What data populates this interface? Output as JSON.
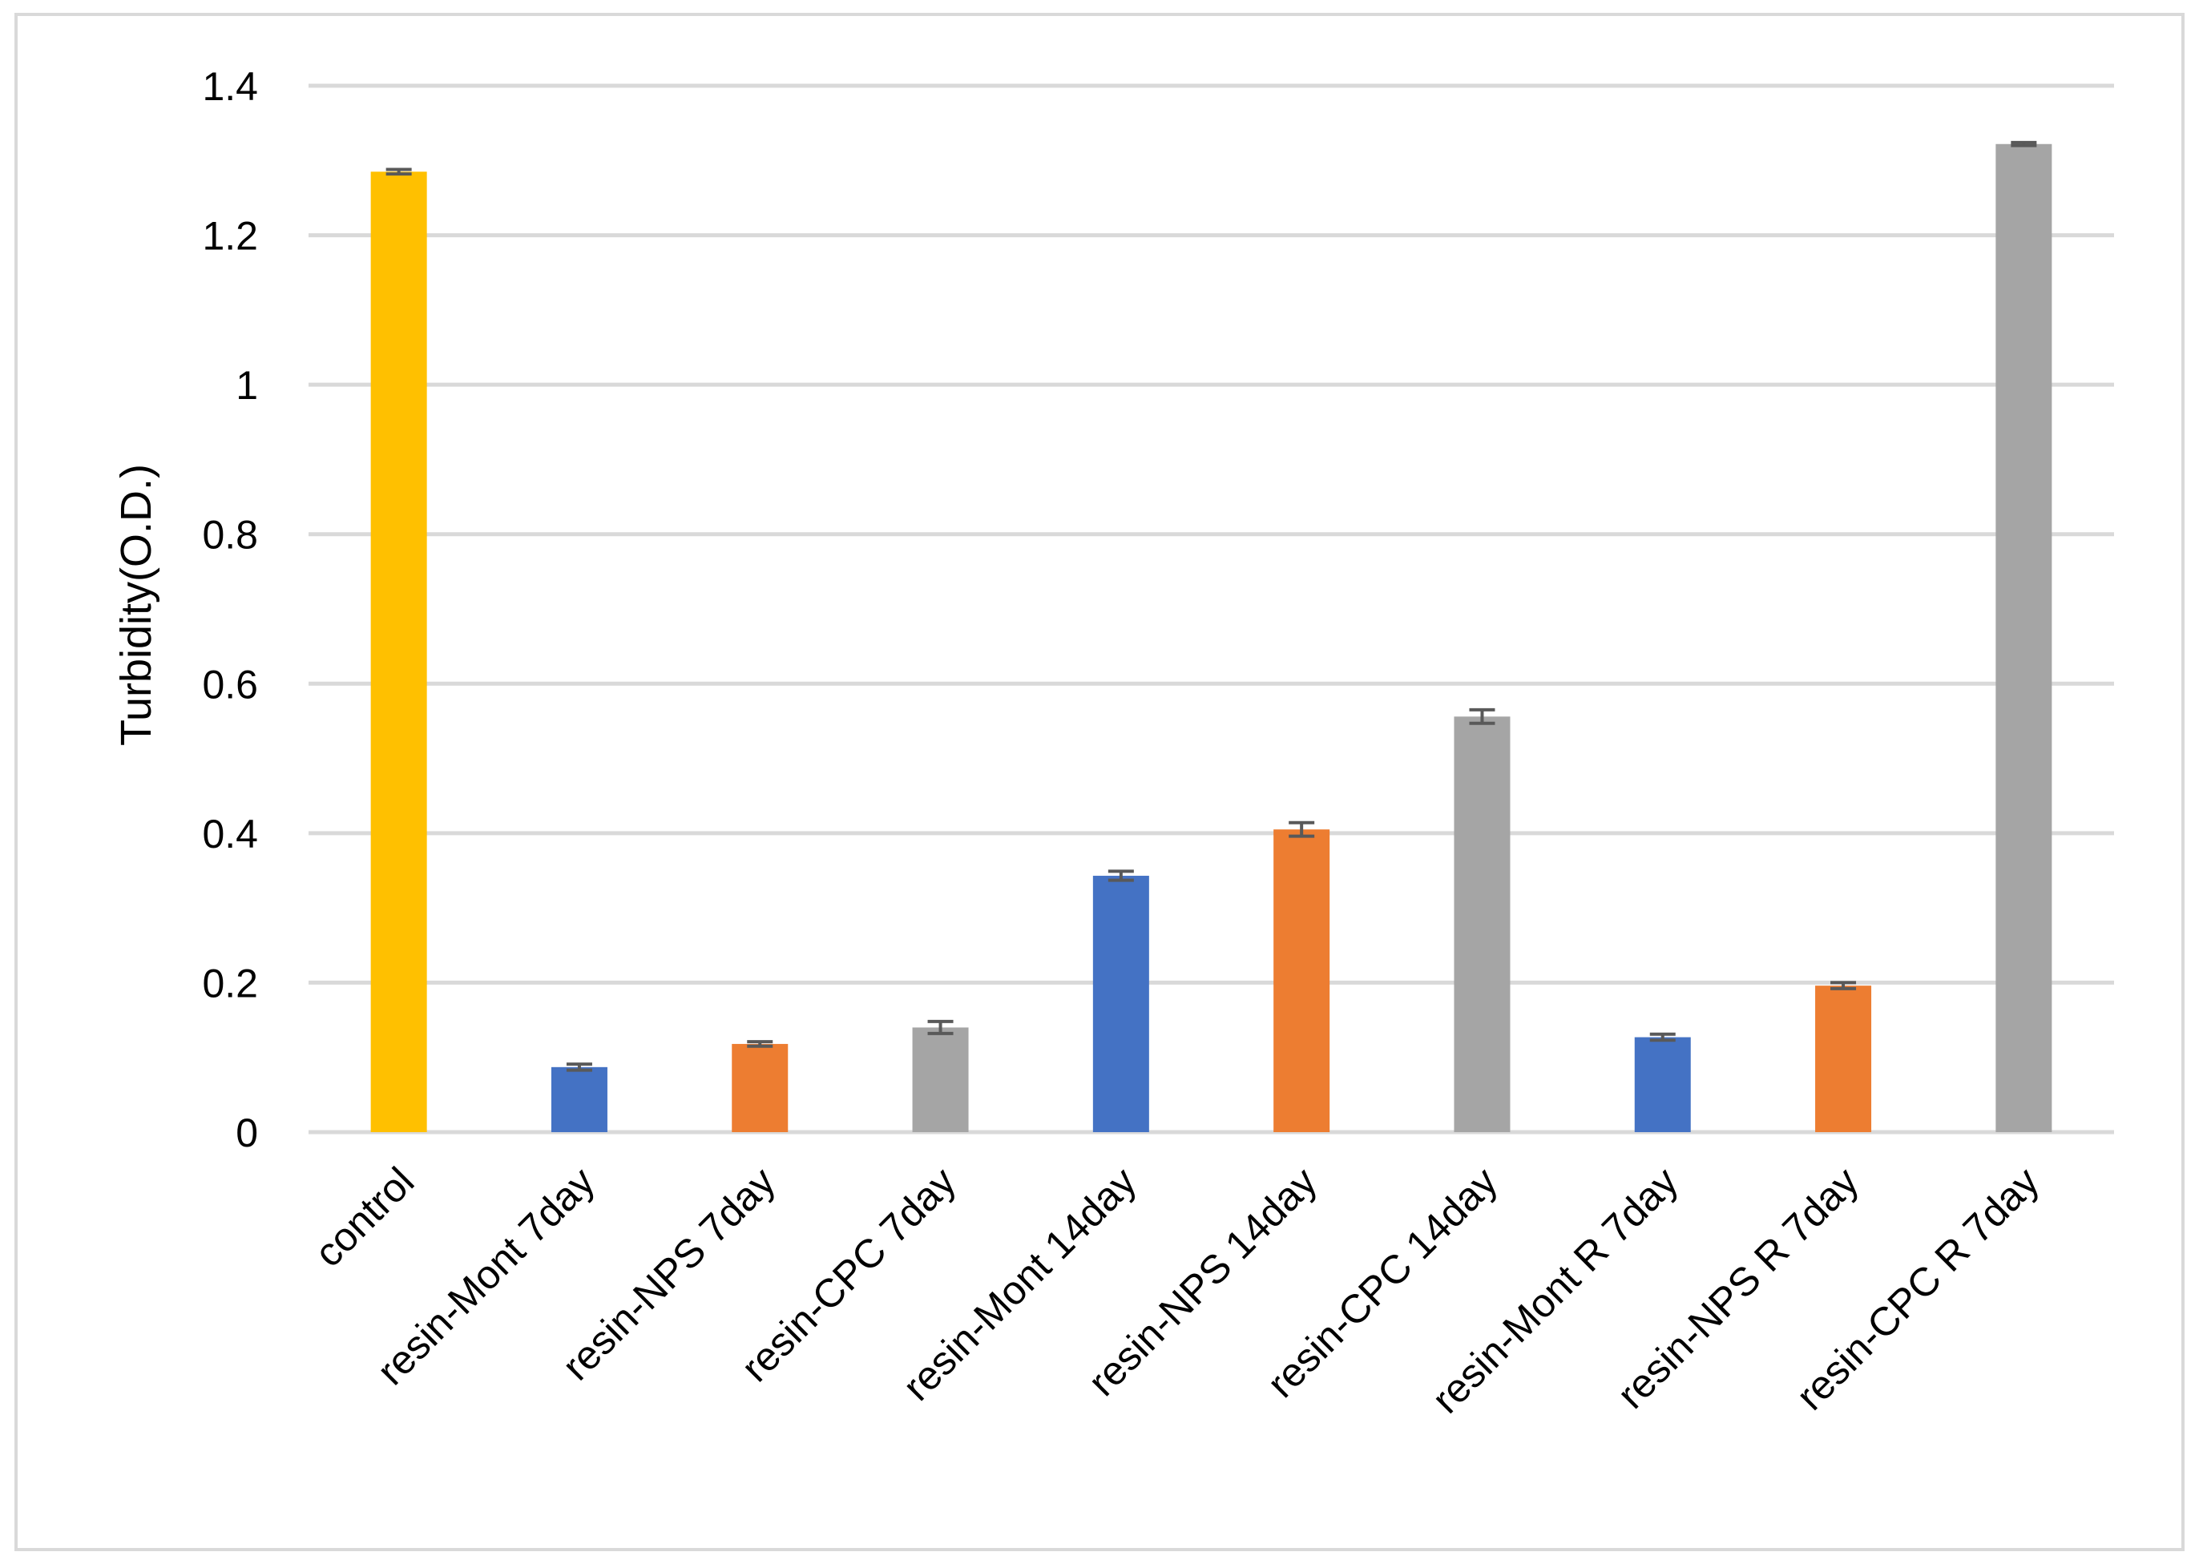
{
  "chart_data": {
    "type": "bar",
    "title": "",
    "xlabel": "",
    "ylabel": "Turbidity(O.D.)",
    "ylim": [
      0,
      1.4
    ],
    "yticks": [
      0,
      0.2,
      0.4,
      0.6,
      0.8,
      1,
      1.2,
      1.4
    ],
    "ytick_labels": [
      "0",
      "0.2",
      "0.4",
      "0.6",
      "0.8",
      "1",
      "1.2",
      "1.4"
    ],
    "grid": true,
    "legend": "none",
    "categories": [
      "control",
      "resin-Mont 7day",
      "resin-NPS 7day",
      "resin-CPC 7day",
      "resin-Mont 14day",
      "resin-NPS 14day",
      "resin-CPC 14day",
      "resin-Mont R 7day",
      "resin-NPS R 7day",
      "resin-CPC R 7day"
    ],
    "values": [
      1.285,
      0.087,
      0.118,
      0.14,
      0.343,
      0.405,
      0.556,
      0.127,
      0.196,
      1.322
    ],
    "errors": [
      0.003,
      0.004,
      0.003,
      0.008,
      0.006,
      0.009,
      0.009,
      0.004,
      0.004,
      0.002
    ],
    "bar_colors": [
      "#FFC000",
      "#4472C4",
      "#ED7D31",
      "#A5A5A5",
      "#4472C4",
      "#ED7D31",
      "#A5A5A5",
      "#4472C4",
      "#ED7D31",
      "#A5A5A5"
    ],
    "colors": {
      "gridline": "#D9D9D9",
      "error_bar": "#595959",
      "frame": "#D9D9D9"
    }
  }
}
